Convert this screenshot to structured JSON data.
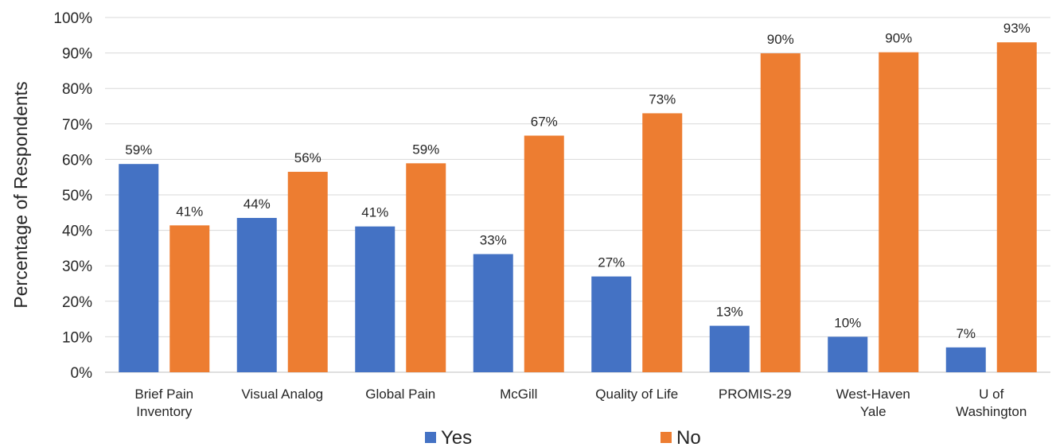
{
  "chart_data": {
    "type": "bar",
    "ylabel": "Percentage of Respondents",
    "ylim": [
      0,
      100
    ],
    "ytick_step": 10,
    "ytick_suffix": "%",
    "grid": true,
    "legend_position": "bottom",
    "categories": [
      [
        "Brief Pain",
        "Inventory"
      ],
      [
        "Visual Analog"
      ],
      [
        "Global Pain"
      ],
      [
        "McGill"
      ],
      [
        "Quality of Life"
      ],
      [
        "PROMIS-29"
      ],
      [
        "West-Haven",
        "Yale"
      ],
      [
        "U of",
        "Washington"
      ]
    ],
    "series": [
      {
        "name": "Yes",
        "color": "#4472c4",
        "values": [
          58.7,
          43.5,
          41.1,
          33.3,
          27.0,
          13.1,
          10.0,
          7.0
        ],
        "labels": [
          "59%",
          "44%",
          "41%",
          "33%",
          "27%",
          "13%",
          "10%",
          "7%"
        ]
      },
      {
        "name": "No",
        "color": "#ed7d31",
        "values": [
          41.4,
          56.5,
          58.9,
          66.7,
          73.0,
          89.9,
          90.2,
          93.0
        ],
        "labels": [
          "41%",
          "56%",
          "59%",
          "67%",
          "73%",
          "90%",
          "90%",
          "93%"
        ]
      }
    ]
  }
}
